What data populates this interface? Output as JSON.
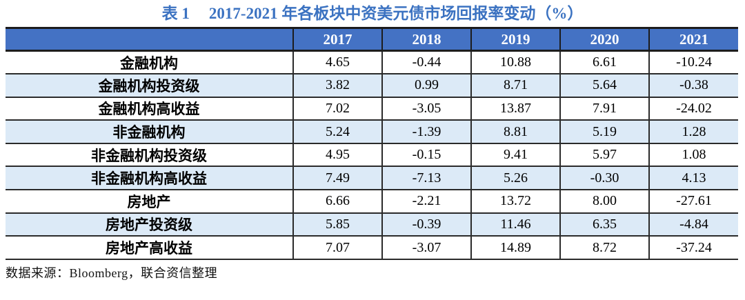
{
  "title": {
    "label": "表 1",
    "text": "2017-2021 年各板块中资美元债市场回报率变动（%）"
  },
  "table": {
    "columns": [
      "",
      "2017",
      "2018",
      "2019",
      "2020",
      "2021"
    ],
    "rows": [
      {
        "label": "金融机构",
        "values": [
          "4.65",
          "-0.44",
          "10.88",
          "6.61",
          "-10.24"
        ]
      },
      {
        "label": "金融机构投资级",
        "values": [
          "3.82",
          "0.99",
          "8.71",
          "5.64",
          "-0.38"
        ]
      },
      {
        "label": "金融机构高收益",
        "values": [
          "7.02",
          "-3.05",
          "13.87",
          "7.91",
          "-24.02"
        ]
      },
      {
        "label": "非金融机构",
        "values": [
          "5.24",
          "-1.39",
          "8.81",
          "5.19",
          "1.28"
        ]
      },
      {
        "label": "非金融机构投资级",
        "values": [
          "4.95",
          "-0.15",
          "9.41",
          "5.97",
          "1.08"
        ]
      },
      {
        "label": "非金融机构高收益",
        "values": [
          "7.49",
          "-7.13",
          "5.26",
          "-0.30",
          "4.13"
        ]
      },
      {
        "label": "房地产",
        "values": [
          "6.66",
          "-2.21",
          "13.72",
          "8.00",
          "-27.61"
        ]
      },
      {
        "label": "房地产投资级",
        "values": [
          "5.85",
          "-0.39",
          "11.46",
          "6.35",
          "-4.84"
        ]
      },
      {
        "label": "房地产高收益",
        "values": [
          "7.07",
          "-3.07",
          "14.89",
          "8.72",
          "-37.24"
        ]
      }
    ]
  },
  "source": "数据来源：Bloomberg，联合资信整理",
  "colors": {
    "title_blue": "#3b72c1",
    "header_bg": "#4472c4",
    "header_text": "#ffffff",
    "stripe_bg": "#dceaf7",
    "grid_line": "#2a2a2a"
  },
  "chart_data": {
    "type": "table",
    "title": "表 1 2017-2021 年各板块中资美元债市场回报率变动（%）",
    "categories": [
      "2017",
      "2018",
      "2019",
      "2020",
      "2021"
    ],
    "series": [
      {
        "name": "金融机构",
        "values": [
          4.65,
          -0.44,
          10.88,
          6.61,
          -10.24
        ]
      },
      {
        "name": "金融机构投资级",
        "values": [
          3.82,
          0.99,
          8.71,
          5.64,
          -0.38
        ]
      },
      {
        "name": "金融机构高收益",
        "values": [
          7.02,
          -3.05,
          13.87,
          7.91,
          -24.02
        ]
      },
      {
        "name": "非金融机构",
        "values": [
          5.24,
          -1.39,
          8.81,
          5.19,
          1.28
        ]
      },
      {
        "name": "非金融机构投资级",
        "values": [
          4.95,
          -0.15,
          9.41,
          5.97,
          1.08
        ]
      },
      {
        "name": "非金融机构高收益",
        "values": [
          7.49,
          -7.13,
          5.26,
          -0.3,
          4.13
        ]
      },
      {
        "name": "房地产",
        "values": [
          6.66,
          -2.21,
          13.72,
          8.0,
          -27.61
        ]
      },
      {
        "name": "房地产投资级",
        "values": [
          5.85,
          -0.39,
          11.46,
          6.35,
          -4.84
        ]
      },
      {
        "name": "房地产高收益",
        "values": [
          7.07,
          -3.07,
          14.89,
          8.72,
          -37.24
        ]
      }
    ],
    "unit": "%",
    "source": "数据来源：Bloomberg，联合资信整理"
  }
}
